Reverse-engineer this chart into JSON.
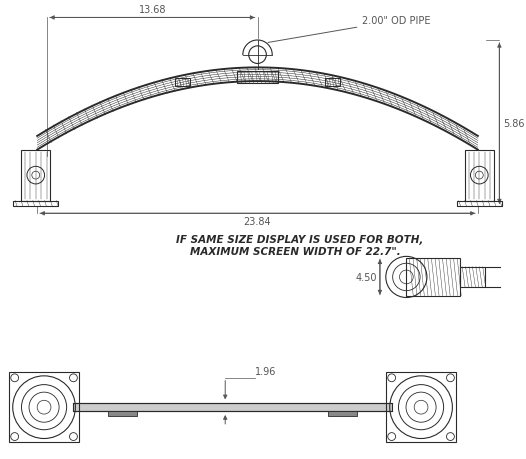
{
  "bg_color": "#ffffff",
  "line_color": "#2a2a2a",
  "dim_color": "#555555",
  "dim_13_68": "13.68",
  "dim_23_84": "23.84",
  "dim_5_86": "5.86",
  "dim_4_50": "4.50",
  "dim_1_96": "1.96",
  "dim_2_00_pipe": "2.00\" OD PIPE",
  "note_line1": "IF SAME SIZE DISPLAY IS USED FOR BOTH,",
  "note_line2": "MAXIMUM SCREEN WIDTH OF 22.7\".",
  "lw": 0.8,
  "lw_thick": 1.4,
  "lw_thin": 0.4
}
